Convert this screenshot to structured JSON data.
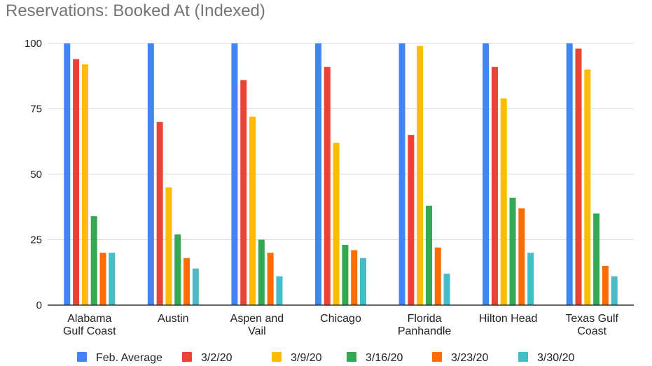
{
  "chart_data": {
    "type": "bar",
    "title": "Reservations: Booked At (Indexed)",
    "xlabel": "",
    "ylabel": "",
    "ylim": [
      0,
      100
    ],
    "yticks": [
      0,
      25,
      50,
      75,
      100
    ],
    "grid": true,
    "legend_position": "bottom",
    "categories": [
      [
        "Alabama",
        "Gulf Coast"
      ],
      [
        "Austin"
      ],
      [
        "Aspen and",
        "Vail"
      ],
      [
        "Chicago"
      ],
      [
        "Florida",
        "Panhandle"
      ],
      [
        "Hilton Head"
      ],
      [
        "Texas Gulf",
        "Coast"
      ]
    ],
    "series": [
      {
        "name": "Feb. Average",
        "color": "#4285f4",
        "values": [
          100,
          100,
          100,
          100,
          100,
          100,
          100
        ]
      },
      {
        "name": "3/2/20",
        "color": "#ea4335",
        "values": [
          94,
          70,
          86,
          91,
          65,
          91,
          98
        ]
      },
      {
        "name": "3/9/20",
        "color": "#fbbc04",
        "values": [
          92,
          45,
          72,
          62,
          99,
          79,
          90
        ]
      },
      {
        "name": "3/16/20",
        "color": "#34a853",
        "values": [
          34,
          27,
          25,
          23,
          38,
          41,
          35
        ]
      },
      {
        "name": "3/23/20",
        "color": "#ff6d01",
        "values": [
          20,
          18,
          20,
          21,
          22,
          37,
          15
        ]
      },
      {
        "name": "3/30/20",
        "color": "#46bdc6",
        "values": [
          20,
          14,
          11,
          18,
          12,
          20,
          11
        ]
      }
    ]
  }
}
